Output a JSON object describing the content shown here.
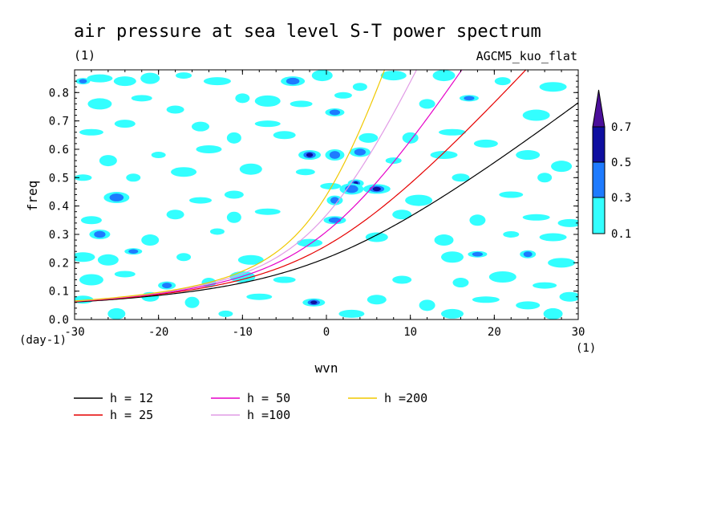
{
  "chart_data": {
    "type": "heatmap",
    "title": "air pressure at sea level S-T power spectrum",
    "subtitle_left": "(1)",
    "subtitle_right": "AGCM5_kuo_flat",
    "xlabel": "wvn",
    "ylabel": "freq",
    "x_unit": "(1)",
    "y_unit": "(day-1)",
    "xlim": [
      -30,
      30
    ],
    "ylim": [
      0,
      0.88
    ],
    "xticks": [
      -30,
      -20,
      -10,
      0,
      10,
      20,
      30
    ],
    "xtick_labels": [
      "-30",
      "-20",
      "-10",
      "0",
      "10",
      "20",
      "30"
    ],
    "yticks": [
      0.0,
      0.1,
      0.2,
      0.3,
      0.4,
      0.5,
      0.6,
      0.7,
      0.8
    ],
    "ytick_labels": [
      "0.0",
      "0.1",
      "0.2",
      "0.3",
      "0.4",
      "0.5",
      "0.6",
      "0.7",
      "0.8"
    ],
    "colorbar": {
      "levels": [
        "0.1",
        "0.3",
        "0.5",
        "0.7"
      ],
      "colors": [
        "#33ffff",
        "#1e7bff",
        "#0f0fa0",
        "#4b0f9a"
      ]
    },
    "contour_patches": [
      {
        "x": -29,
        "y": 0.84,
        "lvl": 1
      },
      {
        "x": -27,
        "y": 0.85,
        "lvl": 0
      },
      {
        "x": -24,
        "y": 0.84,
        "lvl": 0
      },
      {
        "x": -21,
        "y": 0.85,
        "lvl": 0
      },
      {
        "x": -17,
        "y": 0.86,
        "lvl": 0
      },
      {
        "x": -13,
        "y": 0.84,
        "lvl": 0
      },
      {
        "x": -4,
        "y": 0.84,
        "lvl": 1
      },
      {
        "x": -0.5,
        "y": 0.86,
        "lvl": 0
      },
      {
        "x": 2,
        "y": 0.79,
        "lvl": 0
      },
      {
        "x": 4,
        "y": 0.82,
        "lvl": 0
      },
      {
        "x": 8,
        "y": 0.86,
        "lvl": 0
      },
      {
        "x": 14,
        "y": 0.86,
        "lvl": 0
      },
      {
        "x": 17,
        "y": 0.78,
        "lvl": 1
      },
      {
        "x": 21,
        "y": 0.84,
        "lvl": 0
      },
      {
        "x": 27,
        "y": 0.82,
        "lvl": 0
      },
      {
        "x": -27,
        "y": 0.76,
        "lvl": 0
      },
      {
        "x": -22,
        "y": 0.78,
        "lvl": 0
      },
      {
        "x": -18,
        "y": 0.74,
        "lvl": 0
      },
      {
        "x": -10,
        "y": 0.78,
        "lvl": 0
      },
      {
        "x": -7,
        "y": 0.77,
        "lvl": 0
      },
      {
        "x": -3,
        "y": 0.76,
        "lvl": 0
      },
      {
        "x": 1,
        "y": 0.73,
        "lvl": 1
      },
      {
        "x": 12,
        "y": 0.76,
        "lvl": 0
      },
      {
        "x": 25,
        "y": 0.72,
        "lvl": 0
      },
      {
        "x": -28,
        "y": 0.66,
        "lvl": 0
      },
      {
        "x": -24,
        "y": 0.69,
        "lvl": 0
      },
      {
        "x": -15,
        "y": 0.68,
        "lvl": 0
      },
      {
        "x": -11,
        "y": 0.64,
        "lvl": 0
      },
      {
        "x": -7,
        "y": 0.69,
        "lvl": 0
      },
      {
        "x": -5,
        "y": 0.65,
        "lvl": 0
      },
      {
        "x": 5,
        "y": 0.64,
        "lvl": 0
      },
      {
        "x": 10,
        "y": 0.64,
        "lvl": 0
      },
      {
        "x": 15,
        "y": 0.66,
        "lvl": 0
      },
      {
        "x": 19,
        "y": 0.62,
        "lvl": 0
      },
      {
        "x": 4,
        "y": 0.59,
        "lvl": 1
      },
      {
        "x": -26,
        "y": 0.56,
        "lvl": 0
      },
      {
        "x": -20,
        "y": 0.58,
        "lvl": 0
      },
      {
        "x": -14,
        "y": 0.6,
        "lvl": 0
      },
      {
        "x": -2,
        "y": 0.58,
        "lvl": 2
      },
      {
        "x": 1,
        "y": 0.58,
        "lvl": 1
      },
      {
        "x": 8,
        "y": 0.56,
        "lvl": 0
      },
      {
        "x": 14,
        "y": 0.58,
        "lvl": 0
      },
      {
        "x": 24,
        "y": 0.58,
        "lvl": 0
      },
      {
        "x": 28,
        "y": 0.54,
        "lvl": 0
      },
      {
        "x": -29,
        "y": 0.5,
        "lvl": 0
      },
      {
        "x": -23,
        "y": 0.5,
        "lvl": 0
      },
      {
        "x": -17,
        "y": 0.52,
        "lvl": 0
      },
      {
        "x": -9,
        "y": 0.53,
        "lvl": 0
      },
      {
        "x": -2.5,
        "y": 0.52,
        "lvl": 0
      },
      {
        "x": 3.5,
        "y": 0.48,
        "lvl": 2
      },
      {
        "x": 6,
        "y": 0.46,
        "lvl": 2
      },
      {
        "x": 3,
        "y": 0.46,
        "lvl": 1
      },
      {
        "x": 0.5,
        "y": 0.47,
        "lvl": 0
      },
      {
        "x": 16,
        "y": 0.5,
        "lvl": 0
      },
      {
        "x": 26,
        "y": 0.5,
        "lvl": 0
      },
      {
        "x": -25,
        "y": 0.43,
        "lvl": 1
      },
      {
        "x": -15,
        "y": 0.42,
        "lvl": 0
      },
      {
        "x": -11,
        "y": 0.44,
        "lvl": 0
      },
      {
        "x": 1,
        "y": 0.42,
        "lvl": 1
      },
      {
        "x": 11,
        "y": 0.42,
        "lvl": 0
      },
      {
        "x": 22,
        "y": 0.44,
        "lvl": 0
      },
      {
        "x": -28,
        "y": 0.35,
        "lvl": 0
      },
      {
        "x": -18,
        "y": 0.37,
        "lvl": 0
      },
      {
        "x": -11,
        "y": 0.36,
        "lvl": 0
      },
      {
        "x": -7,
        "y": 0.38,
        "lvl": 0
      },
      {
        "x": 1,
        "y": 0.35,
        "lvl": 1
      },
      {
        "x": 9,
        "y": 0.37,
        "lvl": 0
      },
      {
        "x": 18,
        "y": 0.35,
        "lvl": 0
      },
      {
        "x": 25,
        "y": 0.36,
        "lvl": 0
      },
      {
        "x": 29,
        "y": 0.34,
        "lvl": 0
      },
      {
        "x": -27,
        "y": 0.3,
        "lvl": 1
      },
      {
        "x": -21,
        "y": 0.28,
        "lvl": 0
      },
      {
        "x": -13,
        "y": 0.31,
        "lvl": 0
      },
      {
        "x": -2,
        "y": 0.27,
        "lvl": 0
      },
      {
        "x": 6,
        "y": 0.29,
        "lvl": 0
      },
      {
        "x": 14,
        "y": 0.28,
        "lvl": 0
      },
      {
        "x": 22,
        "y": 0.3,
        "lvl": 0
      },
      {
        "x": 27,
        "y": 0.29,
        "lvl": 0
      },
      {
        "x": -29,
        "y": 0.22,
        "lvl": 0
      },
      {
        "x": -26,
        "y": 0.21,
        "lvl": 0
      },
      {
        "x": -23,
        "y": 0.24,
        "lvl": 1
      },
      {
        "x": -17,
        "y": 0.22,
        "lvl": 0
      },
      {
        "x": -9,
        "y": 0.21,
        "lvl": 0
      },
      {
        "x": 15,
        "y": 0.22,
        "lvl": 0
      },
      {
        "x": 18,
        "y": 0.23,
        "lvl": 1
      },
      {
        "x": 24,
        "y": 0.23,
        "lvl": 1
      },
      {
        "x": 28,
        "y": 0.2,
        "lvl": 0
      },
      {
        "x": -28,
        "y": 0.14,
        "lvl": 0
      },
      {
        "x": -24,
        "y": 0.16,
        "lvl": 0
      },
      {
        "x": -19,
        "y": 0.12,
        "lvl": 1
      },
      {
        "x": -14,
        "y": 0.13,
        "lvl": 0
      },
      {
        "x": -10,
        "y": 0.15,
        "lvl": 0
      },
      {
        "x": -5,
        "y": 0.14,
        "lvl": 0
      },
      {
        "x": 9,
        "y": 0.14,
        "lvl": 0
      },
      {
        "x": 16,
        "y": 0.13,
        "lvl": 0
      },
      {
        "x": 21,
        "y": 0.15,
        "lvl": 0
      },
      {
        "x": 26,
        "y": 0.12,
        "lvl": 0
      },
      {
        "x": -29,
        "y": 0.07,
        "lvl": 0
      },
      {
        "x": -21,
        "y": 0.08,
        "lvl": 0
      },
      {
        "x": -16,
        "y": 0.06,
        "lvl": 0
      },
      {
        "x": -8,
        "y": 0.08,
        "lvl": 0
      },
      {
        "x": -1.5,
        "y": 0.06,
        "lvl": 2
      },
      {
        "x": 6,
        "y": 0.07,
        "lvl": 0
      },
      {
        "x": 12,
        "y": 0.05,
        "lvl": 0
      },
      {
        "x": 19,
        "y": 0.07,
        "lvl": 0
      },
      {
        "x": 24,
        "y": 0.05,
        "lvl": 0
      },
      {
        "x": 29,
        "y": 0.08,
        "lvl": 0
      },
      {
        "x": -25,
        "y": 0.02,
        "lvl": 0
      },
      {
        "x": -12,
        "y": 0.02,
        "lvl": 0
      },
      {
        "x": 3,
        "y": 0.02,
        "lvl": 0
      },
      {
        "x": 15,
        "y": 0.02,
        "lvl": 0
      },
      {
        "x": 27,
        "y": 0.02,
        "lvl": 0
      }
    ],
    "series": [
      {
        "name": "h = 12",
        "h": 12,
        "color": "#000000"
      },
      {
        "name": "h = 25",
        "h": 25,
        "color": "#e60000"
      },
      {
        "name": "h = 50",
        "h": 50,
        "color": "#e600c8"
      },
      {
        "name": "h =100",
        "h": 100,
        "color": "#e19be6"
      },
      {
        "name": "h =200",
        "h": 200,
        "color": "#f0c800"
      }
    ]
  }
}
